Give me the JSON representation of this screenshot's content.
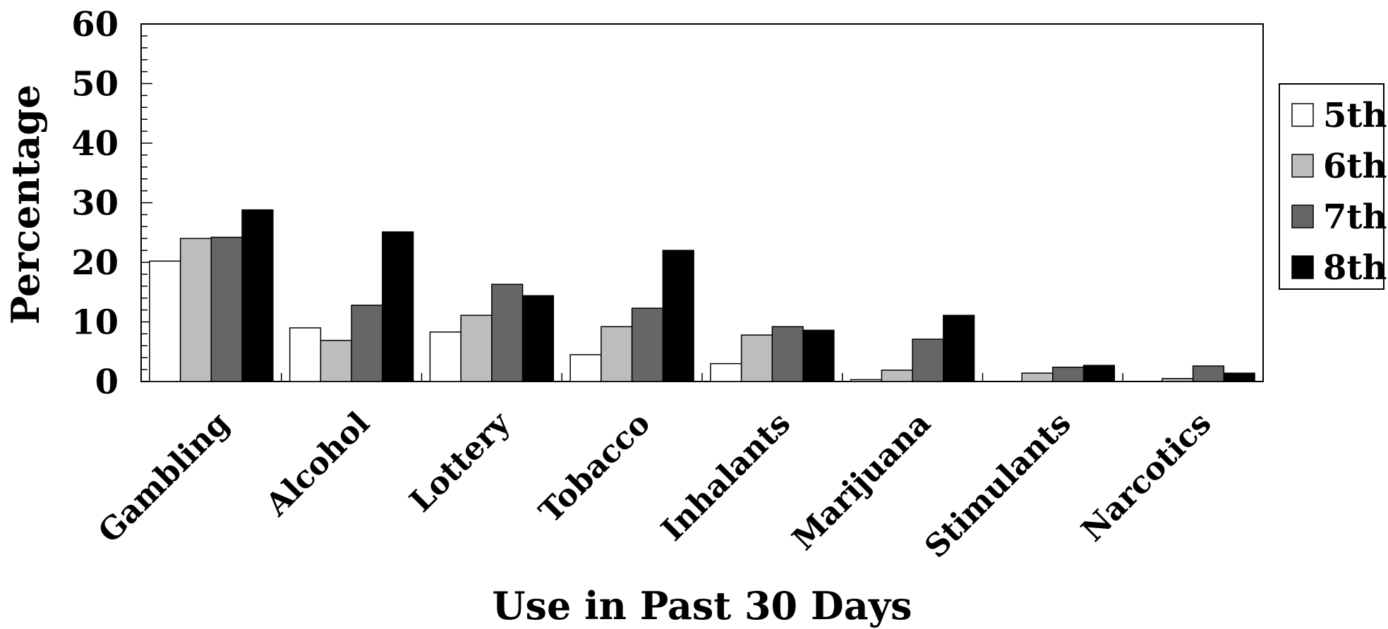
{
  "chart_data": {
    "type": "bar",
    "title": "",
    "xlabel": "Use in Past 30 Days",
    "ylabel": "Percentage",
    "ylim": [
      0,
      60
    ],
    "yticks": [
      0,
      10,
      20,
      30,
      40,
      50,
      60
    ],
    "grid": false,
    "legend_position": "right",
    "categories": [
      "Gambling",
      "Alcohol",
      "Lottery",
      "Tobacco",
      "Inhalants",
      "Marijuana",
      "Stimulants",
      "Narcotics"
    ],
    "series": [
      {
        "name": "5th",
        "color": "#ffffff",
        "values": [
          20.2,
          9.0,
          8.3,
          4.5,
          3.0,
          0.3,
          0.0,
          0.0
        ]
      },
      {
        "name": "6th",
        "color": "#bdbdbd",
        "values": [
          24.0,
          6.9,
          11.1,
          9.2,
          7.8,
          1.9,
          1.4,
          0.5
        ]
      },
      {
        "name": "7th",
        "color": "#666666",
        "values": [
          24.2,
          12.8,
          16.3,
          12.3,
          9.2,
          7.1,
          2.4,
          2.6
        ]
      },
      {
        "name": "8th",
        "color": "#000000",
        "values": [
          28.8,
          25.1,
          14.4,
          22.0,
          8.6,
          11.1,
          2.7,
          1.4
        ]
      }
    ]
  }
}
